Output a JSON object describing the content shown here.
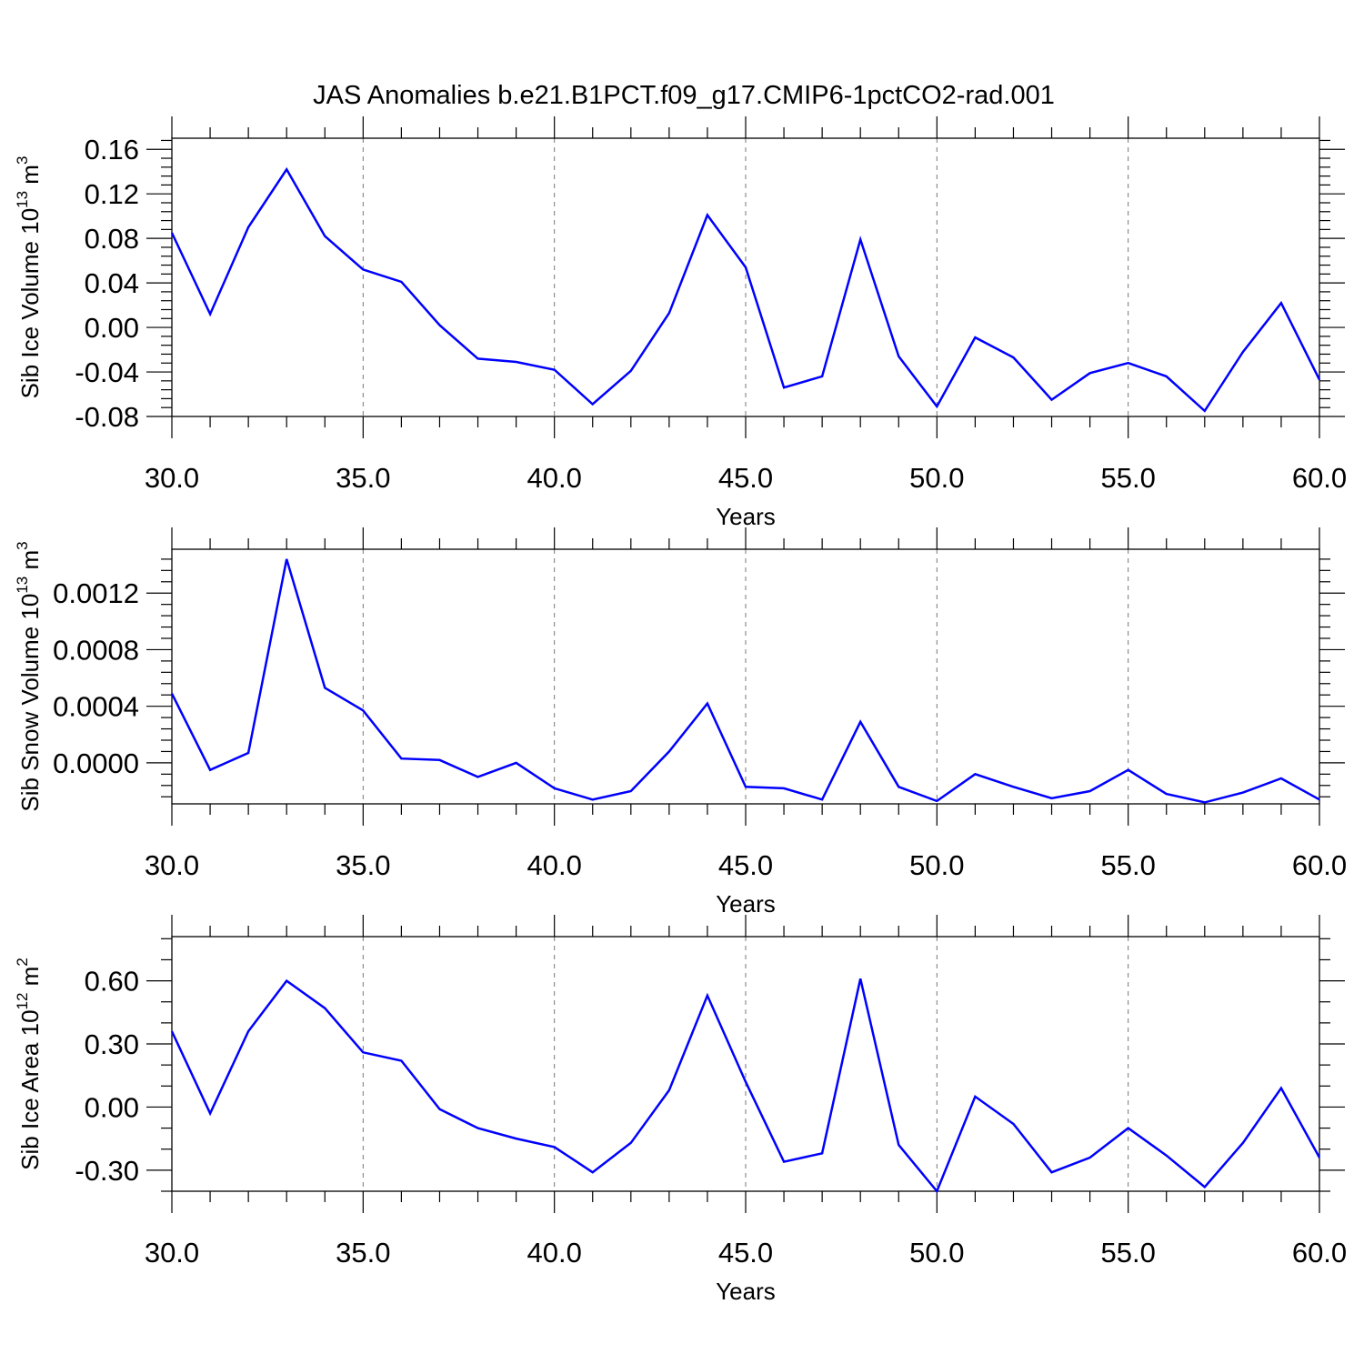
{
  "title": "JAS Anomalies b.e21.B1PCT.f09_g17.CMIP6-1pctCO2-rad.001",
  "colors": {
    "series": "#0000ff",
    "grid": "#777777",
    "axis": "#000000"
  },
  "chart_data": [
    {
      "type": "line",
      "title": "",
      "xlabel": "Years",
      "ylabel_main": "Sib Ice Volume 10",
      "ylabel_sup": "13",
      "ylabel_unit": " m",
      "ylabel_unit_sup": "3",
      "xlim": [
        30,
        60
      ],
      "ylim": [
        -0.08,
        0.17
      ],
      "xticks": [
        30,
        35,
        40,
        45,
        50,
        55,
        60
      ],
      "xtick_labels": [
        "30.0",
        "35.0",
        "40.0",
        "45.0",
        "50.0",
        "55.0",
        "60.0"
      ],
      "yticks": [
        -0.08,
        -0.04,
        0.0,
        0.04,
        0.08,
        0.12,
        0.16
      ],
      "ytick_labels": [
        "-0.08",
        "-0.04",
        "0.00",
        "0.04",
        "0.08",
        "0.12",
        "0.16"
      ],
      "y_minor_step": 0.008,
      "grid_x": true,
      "x": [
        30,
        31,
        32,
        33,
        34,
        35,
        36,
        37,
        38,
        39,
        40,
        41,
        42,
        43,
        44,
        45,
        46,
        47,
        48,
        49,
        50,
        51,
        52,
        53,
        54,
        55,
        56,
        57,
        58,
        59,
        60
      ],
      "y": [
        0.085,
        0.012,
        0.09,
        0.142,
        0.082,
        0.052,
        0.041,
        0.002,
        -0.028,
        -0.031,
        -0.038,
        -0.069,
        -0.039,
        0.013,
        0.101,
        0.054,
        -0.054,
        -0.044,
        0.079,
        -0.026,
        -0.071,
        -0.009,
        -0.027,
        -0.065,
        -0.041,
        -0.032,
        -0.044,
        -0.075,
        -0.022,
        0.022,
        -0.047
      ]
    },
    {
      "type": "line",
      "title": "",
      "xlabel": "Years",
      "ylabel_main": "Sib Snow Volume 10",
      "ylabel_sup": "13",
      "ylabel_unit": " m",
      "ylabel_unit_sup": "3",
      "xlim": [
        30,
        60
      ],
      "ylim": [
        -0.00029,
        0.00151
      ],
      "xticks": [
        30,
        35,
        40,
        45,
        50,
        55,
        60
      ],
      "xtick_labels": [
        "30.0",
        "35.0",
        "40.0",
        "45.0",
        "50.0",
        "55.0",
        "60.0"
      ],
      "yticks": [
        0.0,
        0.0004,
        0.0008,
        0.0012
      ],
      "ytick_labels": [
        "0.0000",
        "0.0004",
        "0.0008",
        "0.0012"
      ],
      "y_minor_step": 8e-05,
      "grid_x": true,
      "x": [
        30,
        31,
        32,
        33,
        34,
        35,
        36,
        37,
        38,
        39,
        40,
        41,
        42,
        43,
        44,
        45,
        46,
        47,
        48,
        49,
        50,
        51,
        52,
        53,
        54,
        55,
        56,
        57,
        58,
        59,
        60
      ],
      "y": [
        0.00049,
        -5e-05,
        7e-05,
        0.00144,
        0.00053,
        0.00037,
        3e-05,
        2e-05,
        -0.0001,
        0.0,
        -0.00018,
        -0.00026,
        -0.0002,
        8e-05,
        0.00042,
        -0.00017,
        -0.00018,
        -0.00026,
        0.00029,
        -0.00017,
        -0.00027,
        -8e-05,
        -0.00017,
        -0.00025,
        -0.0002,
        -5e-05,
        -0.00022,
        -0.00028,
        -0.00021,
        -0.00011,
        -0.00026
      ]
    },
    {
      "type": "line",
      "title": "",
      "xlabel": "Years",
      "ylabel_main": "Sib Ice Area 10",
      "ylabel_sup": "12",
      "ylabel_unit": " m",
      "ylabel_unit_sup": "2",
      "xlim": [
        30,
        60
      ],
      "ylim": [
        -0.4,
        0.81
      ],
      "xticks": [
        30,
        35,
        40,
        45,
        50,
        55,
        60
      ],
      "xtick_labels": [
        "30.0",
        "35.0",
        "40.0",
        "45.0",
        "50.0",
        "55.0",
        "60.0"
      ],
      "yticks": [
        -0.3,
        0.0,
        0.3,
        0.6
      ],
      "ytick_labels": [
        "-0.30",
        "0.00",
        "0.30",
        "0.60"
      ],
      "y_minor_step": 0.1,
      "grid_x": true,
      "x": [
        30,
        31,
        32,
        33,
        34,
        35,
        36,
        37,
        38,
        39,
        40,
        41,
        42,
        43,
        44,
        45,
        46,
        47,
        48,
        49,
        50,
        51,
        52,
        53,
        54,
        55,
        56,
        57,
        58,
        59,
        60
      ],
      "y": [
        0.36,
        -0.03,
        0.36,
        0.6,
        0.47,
        0.26,
        0.22,
        -0.01,
        -0.1,
        -0.15,
        -0.19,
        -0.31,
        -0.17,
        0.08,
        0.53,
        0.12,
        -0.26,
        -0.22,
        0.61,
        -0.18,
        -0.4,
        0.05,
        -0.08,
        -0.31,
        -0.24,
        -0.1,
        -0.23,
        -0.38,
        -0.17,
        0.09,
        -0.24
      ]
    }
  ]
}
